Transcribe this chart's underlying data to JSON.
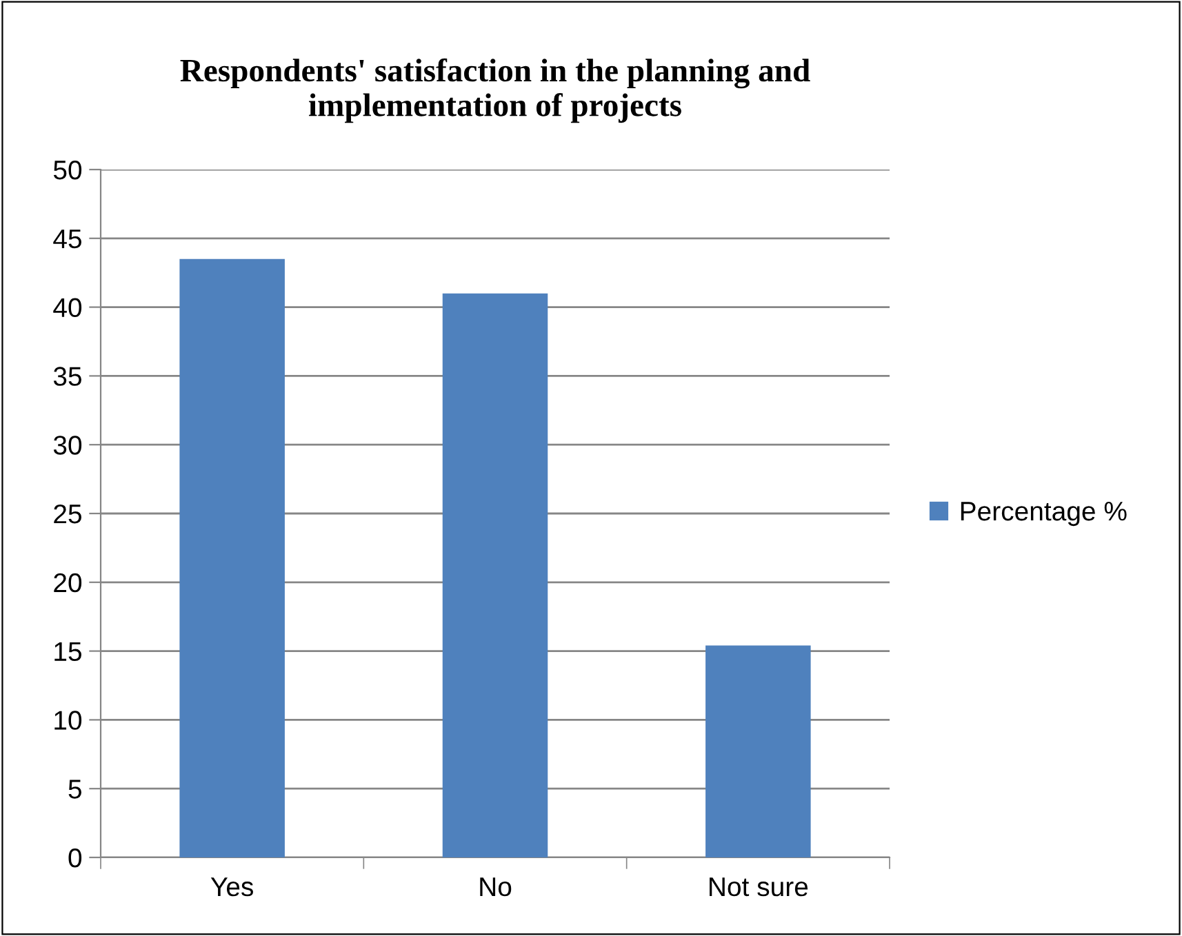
{
  "chart_data": {
    "type": "bar",
    "title": "Respondents' satisfaction in the planning and\nimplementation of projects",
    "categories": [
      "Yes",
      "No",
      "Not sure"
    ],
    "series": [
      {
        "name": "Percentage %",
        "color": "#4f81bd",
        "values": [
          43.5,
          41.0,
          15.4
        ]
      }
    ],
    "ylim": [
      0,
      50
    ],
    "yticks": [
      0,
      5,
      10,
      15,
      20,
      25,
      30,
      35,
      40,
      45,
      50
    ],
    "grid": "y",
    "legend": "right"
  }
}
